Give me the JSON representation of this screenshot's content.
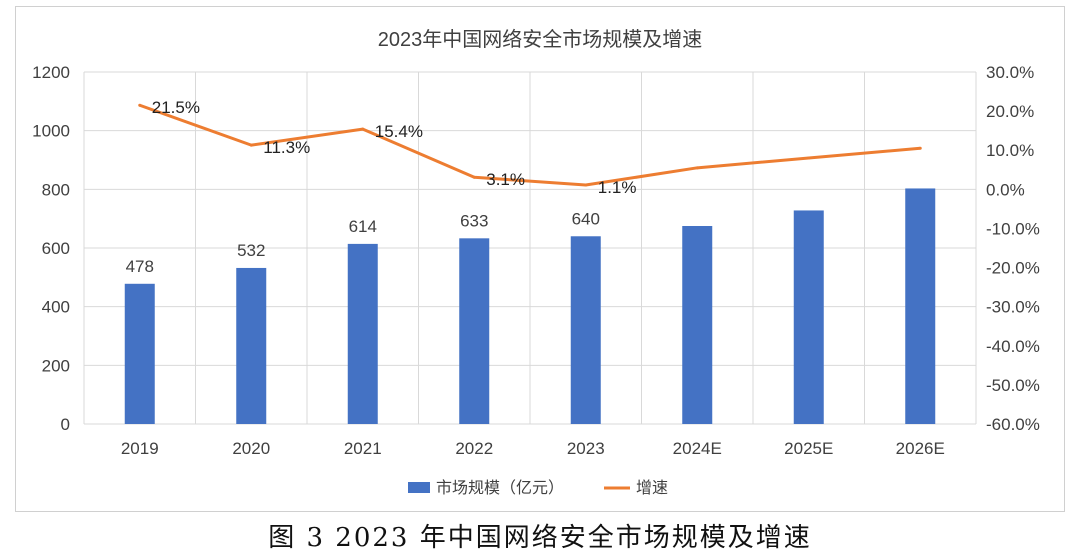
{
  "caption": "图 3   2023 年中国网络安全市场规模及增速",
  "colors": {
    "bar": "#4472C4",
    "line": "#ED7D31",
    "grid": "#d9d9d9",
    "text": "#404040"
  },
  "chart_data": {
    "type": "bar",
    "title": "2023年中国网络安全市场规模及增速",
    "categories": [
      "2019",
      "2020",
      "2021",
      "2022",
      "2023",
      "2024E",
      "2025E",
      "2026E"
    ],
    "series": [
      {
        "name": "市场规模（亿元）",
        "type": "bar",
        "axis": "left",
        "values": [
          478,
          532,
          614,
          633,
          640,
          675,
          728,
          803
        ],
        "labels": [
          "478",
          "532",
          "614",
          "633",
          "640",
          "",
          "",
          ""
        ]
      },
      {
        "name": "增速",
        "type": "line",
        "axis": "right",
        "values": [
          21.5,
          11.3,
          15.4,
          3.1,
          1.1,
          5.5,
          8.0,
          10.5
        ],
        "labels": [
          "21.5%",
          "11.3%",
          "15.4%",
          "3.1%",
          "1.1%",
          "",
          "",
          ""
        ]
      }
    ],
    "y_left": {
      "min": 0,
      "max": 1200,
      "ticks": [
        "0",
        "200",
        "400",
        "600",
        "800",
        "1000",
        "1200"
      ]
    },
    "y_right": {
      "min": -60,
      "max": 30,
      "ticks": [
        "-60.0%",
        "-50.0%",
        "-40.0%",
        "-30.0%",
        "-20.0%",
        "-10.0%",
        "0.0%",
        "10.0%",
        "20.0%",
        "30.0%"
      ]
    },
    "grid": true,
    "legend": "bottom"
  }
}
